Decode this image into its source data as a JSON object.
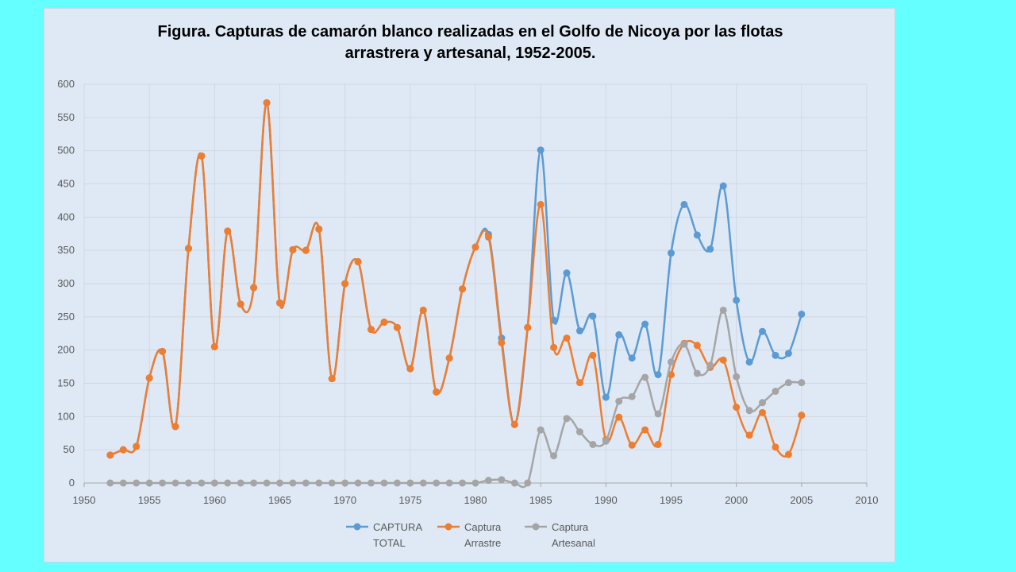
{
  "chart_data": {
    "type": "line",
    "title_line1": "Figura. Capturas de camarón blanco realizadas en el Golfo de Nicoya por las flotas",
    "title_line2": "arrastrera  y artesanal, 1952-2005.",
    "xlim": [
      1950,
      2010
    ],
    "ylim": [
      0,
      600
    ],
    "x_ticks": [
      1950,
      1955,
      1960,
      1965,
      1970,
      1975,
      1980,
      1985,
      1990,
      1995,
      2000,
      2005,
      2010
    ],
    "y_ticks": [
      0,
      50,
      100,
      150,
      200,
      250,
      300,
      350,
      400,
      450,
      500,
      550,
      600
    ],
    "grid": true,
    "legend_position": "bottom",
    "x": [
      1952,
      1953,
      1954,
      1955,
      1956,
      1957,
      1958,
      1959,
      1960,
      1961,
      1962,
      1963,
      1964,
      1965,
      1966,
      1967,
      1968,
      1969,
      1970,
      1971,
      1972,
      1973,
      1974,
      1975,
      1976,
      1977,
      1978,
      1979,
      1980,
      1981,
      1982,
      1983,
      1984,
      1985,
      1986,
      1987,
      1988,
      1989,
      1990,
      1991,
      1992,
      1993,
      1994,
      1995,
      1996,
      1997,
      1998,
      1999,
      2000,
      2001,
      2002,
      2003,
      2004,
      2005
    ],
    "series": [
      {
        "name_line1": "CAPTURA",
        "name_line2": "TOTAL",
        "color": "#5b9bd5",
        "values": [
          42,
          50,
          55,
          158,
          198,
          85,
          353,
          492,
          205,
          379,
          269,
          294,
          572,
          271,
          351,
          350,
          382,
          157,
          300,
          333,
          231,
          242,
          234,
          172,
          260,
          137,
          188,
          292,
          355,
          374,
          218,
          88,
          234,
          501,
          245,
          316,
          229,
          251,
          129,
          223,
          188,
          239,
          163,
          346,
          419,
          373,
          352,
          447,
          275,
          182,
          228,
          192,
          195,
          254
        ]
      },
      {
        "name_line1": "Captura",
        "name_line2": "Arrastre",
        "color": "#ed7d31",
        "values": [
          42,
          50,
          55,
          158,
          198,
          85,
          353,
          492,
          205,
          379,
          269,
          294,
          572,
          271,
          351,
          350,
          382,
          157,
          300,
          333,
          231,
          242,
          234,
          172,
          260,
          137,
          188,
          292,
          355,
          370,
          211,
          88,
          234,
          419,
          204,
          218,
          151,
          192,
          65,
          99,
          57,
          80,
          58,
          163,
          210,
          207,
          174,
          185,
          114,
          72,
          106,
          54,
          43,
          102
        ]
      },
      {
        "name_line1": "Captura",
        "name_line2": "Artesanal",
        "color": "#a5a5a5",
        "values": [
          0,
          0,
          0,
          0,
          0,
          0,
          0,
          0,
          0,
          0,
          0,
          0,
          0,
          0,
          0,
          0,
          0,
          0,
          0,
          0,
          0,
          0,
          0,
          0,
          0,
          0,
          0,
          0,
          0,
          4,
          5,
          0,
          0,
          80,
          41,
          97,
          77,
          58,
          63,
          123,
          130,
          159,
          104,
          182,
          209,
          165,
          177,
          260,
          160,
          109,
          121,
          138,
          151,
          151
        ]
      }
    ]
  }
}
